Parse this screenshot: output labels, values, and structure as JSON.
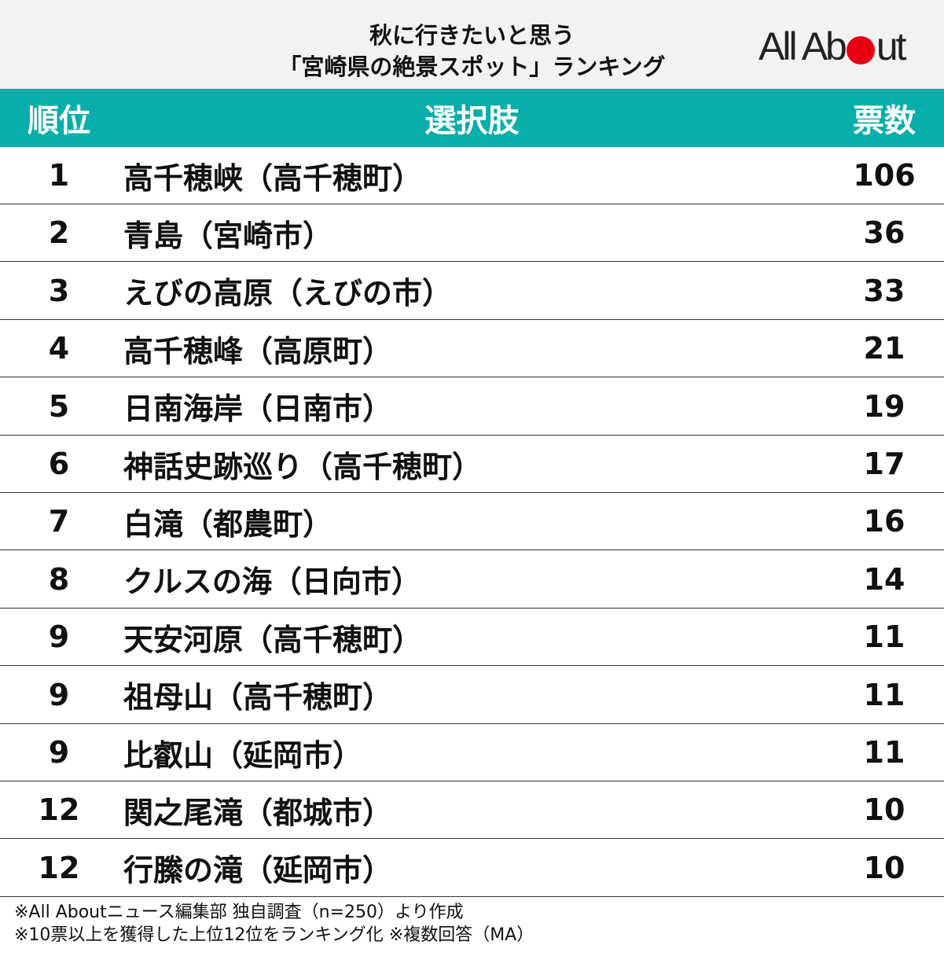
{
  "header": {
    "title": [
      "秋に行きたいと思う",
      "「宮崎県の絶景スポット」ランキング"
    ],
    "logo": [
      "All Ab",
      "ut"
    ]
  },
  "table": {
    "columns": [
      "順位",
      "選択肢",
      "票数"
    ],
    "rows": [
      [
        1,
        "高千穂峡（高千穂町）",
        106
      ],
      [
        2,
        "青島（宮崎市）",
        36
      ],
      [
        3,
        "えびの高原（えびの市）",
        33
      ],
      [
        4,
        "高千穂峰（高原町）",
        21
      ],
      [
        5,
        "日南海岸（日南市）",
        19
      ],
      [
        6,
        "神話史跡巡り（高千穂町）",
        17
      ],
      [
        7,
        "白滝（都農町）",
        16
      ],
      [
        8,
        "クルスの海（日向市）",
        14
      ],
      [
        9,
        "天安河原（高千穂町）",
        11
      ],
      [
        9,
        "祖母山（高千穂町）",
        11
      ],
      [
        9,
        "比叡山（延岡市）",
        11
      ],
      [
        12,
        "関之尾滝（都城市）",
        10
      ],
      [
        12,
        "行縢の滝（延岡市）",
        10
      ]
    ]
  },
  "footer": {
    "notes": [
      "※All Aboutニュース編集部 独自調査（n=250）より作成",
      "※10票以上を獲得した上位12位をランキング化 ※複数回答（MA）"
    ]
  }
}
